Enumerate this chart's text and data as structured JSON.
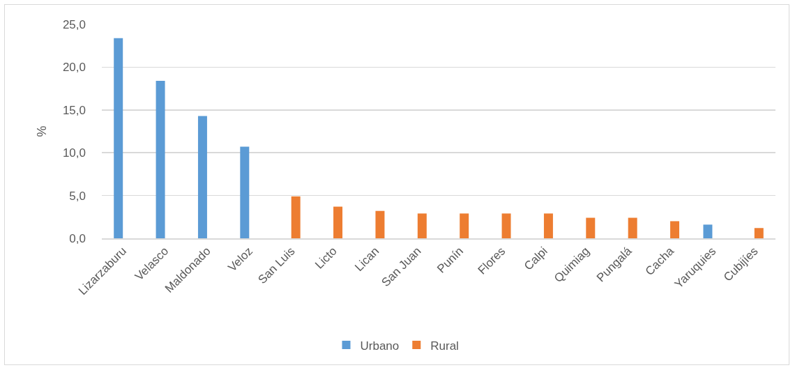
{
  "chart_data": {
    "type": "bar",
    "ylabel": "%",
    "categories": [
      "Lizarzaburu",
      "Velasco",
      "Maldonado",
      "Veloz",
      "San Luis",
      "Licto",
      "Lican",
      "San Juan",
      "Punín",
      "Flores",
      "Calpi",
      "Quimiag",
      "Pungalá",
      "Cacha",
      "Yaruquies",
      "Cubijíes"
    ],
    "series": [
      {
        "name": "Urbano",
        "color": "#5b9bd5",
        "values": [
          23.4,
          18.4,
          14.3,
          10.7,
          null,
          null,
          null,
          null,
          null,
          null,
          null,
          null,
          null,
          null,
          1.6,
          null
        ]
      },
      {
        "name": "Rural",
        "color": "#ed7d31",
        "values": [
          null,
          null,
          null,
          null,
          4.9,
          3.7,
          3.2,
          2.9,
          2.9,
          2.9,
          2.9,
          2.4,
          2.4,
          2.0,
          null,
          1.2
        ]
      }
    ],
    "ylim": [
      0,
      25
    ],
    "yticks": [
      {
        "value": 0,
        "label": "0,0"
      },
      {
        "value": 5,
        "label": "5,0"
      },
      {
        "value": 10,
        "label": "10,0"
      },
      {
        "value": 15,
        "label": "15,0"
      },
      {
        "value": 20,
        "label": "20,0"
      },
      {
        "value": 25,
        "label": "25,0"
      }
    ],
    "grid": "y",
    "legend": "bottom"
  }
}
